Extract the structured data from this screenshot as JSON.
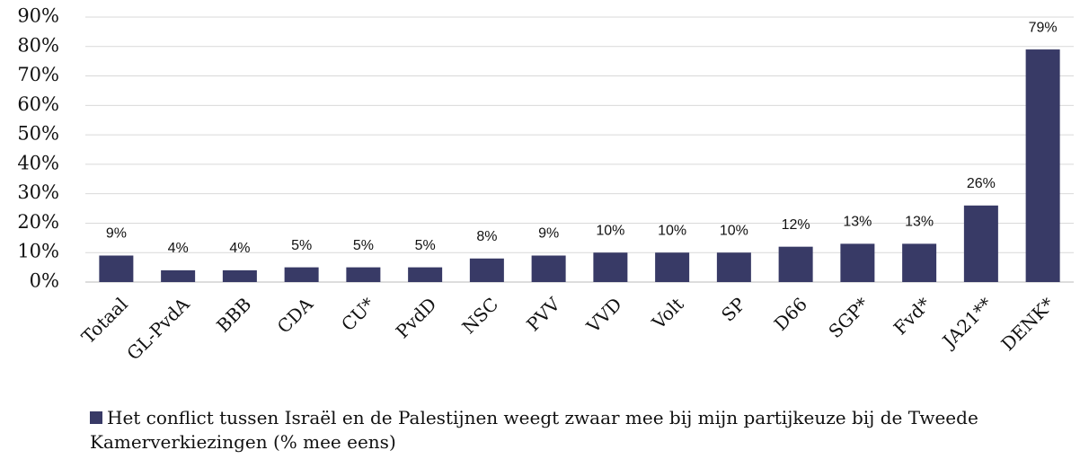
{
  "chart_data": {
    "type": "bar",
    "categories": [
      "Totaal",
      "GL-PvdA",
      "BBB",
      "CDA",
      "CU*",
      "PvdD",
      "NSC",
      "PVV",
      "VVD",
      "Volt",
      "SP",
      "D66",
      "SGP*",
      "Fvd*",
      "JA21**",
      "DENK*"
    ],
    "series": [
      {
        "name": "Het conflict tussen Israël en de Palestijnen weegt zwaar mee bij mijn partijkeuze bij de Tweede Kamerverkiezingen (% mee eens)",
        "color": "#383a66",
        "values": [
          9,
          4,
          4,
          5,
          5,
          5,
          8,
          9,
          10,
          10,
          10,
          12,
          13,
          13,
          26,
          79
        ],
        "value_labels": [
          "9%",
          "4%",
          "4%",
          "5%",
          "5%",
          "5%",
          "8%",
          "9%",
          "10%",
          "10%",
          "10%",
          "12%",
          "13%",
          "13%",
          "26%",
          "79%"
        ]
      }
    ],
    "ylim": [
      0,
      90
    ],
    "yticks": [
      {
        "value": 0,
        "label": "0%"
      },
      {
        "value": 10,
        "label": "10%"
      },
      {
        "value": 20,
        "label": "20%"
      },
      {
        "value": 30,
        "label": "30%"
      },
      {
        "value": 40,
        "label": "40%"
      },
      {
        "value": 50,
        "label": "50%"
      },
      {
        "value": 60,
        "label": "60%"
      },
      {
        "value": 70,
        "label": "70%"
      },
      {
        "value": 80,
        "label": "80%"
      },
      {
        "value": 90,
        "label": "90%"
      }
    ],
    "grid": true,
    "legend": "bottom"
  }
}
